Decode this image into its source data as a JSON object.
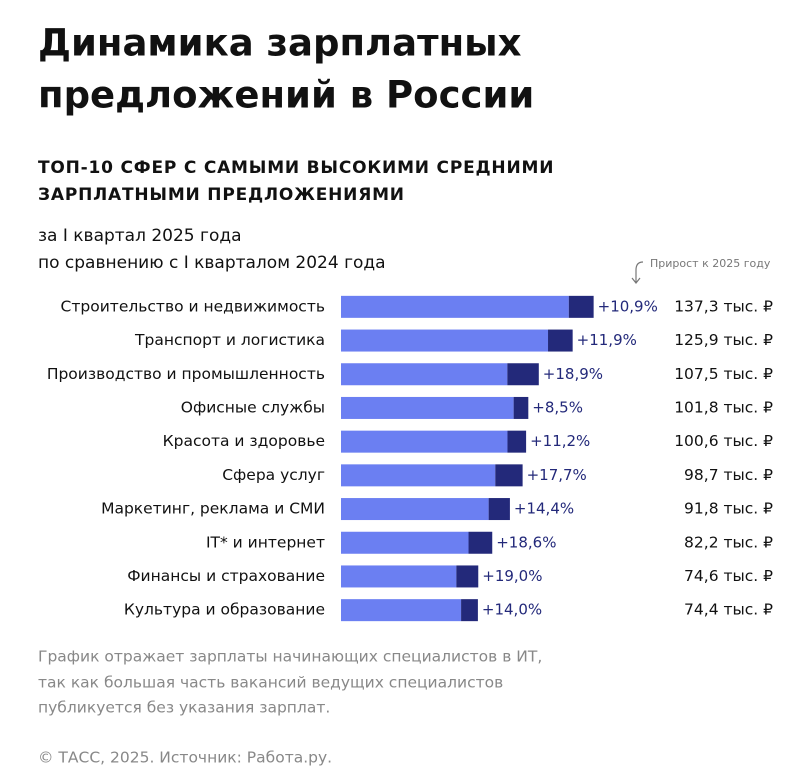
{
  "chart_data": {
    "type": "bar",
    "title": [
      "Динамика зарплатных",
      "предложений в России"
    ],
    "subtitle": [
      "ТОП-10 СФЕР С САМЫМИ ВЫСОКИМИ СРЕДНИМИ",
      "ЗАРПЛАТНЫМИ ПРЕДЛОЖЕНИЯМИ"
    ],
    "period": [
      "за I квартал 2025 года",
      "по сравнению с I кварталом 2024 года"
    ],
    "annotation": "Прирост к 2025 году",
    "categories": [
      "Строительство и недвижимость",
      "Транспорт и логистика",
      "Производство и промышленность",
      "Офисные службы",
      "Красота и здоровье",
      "Сфера услуг",
      "Маркетинг, реклама и СМИ",
      "IT* и интернет",
      "Финансы и страхование",
      "Культура и образование"
    ],
    "values": [
      137.3,
      125.9,
      107.5,
      101.8,
      100.6,
      98.7,
      91.8,
      82.2,
      74.6,
      74.4
    ],
    "value_labels": [
      "137,3 тыс. ₽",
      "125,9 тыс. ₽",
      "107,5 тыс. ₽",
      "101,8 тыс. ₽",
      "100,6 тыс. ₽",
      "98,7 тыс. ₽",
      "91,8 тыс. ₽",
      "82,2 тыс. ₽",
      "74,6 тыс. ₽",
      "74,4 тыс. ₽"
    ],
    "growth": [
      10.9,
      11.9,
      18.9,
      8.5,
      11.2,
      17.7,
      14.4,
      18.6,
      19.0,
      14.0
    ],
    "growth_labels": [
      "+10,9%",
      "+11,9%",
      "+18,9%",
      "+8,5%",
      "+11,2%",
      "+17,7%",
      "+14,4%",
      "+18,6%",
      "+19,0%",
      "+14,0%"
    ],
    "color": "#6b7ff2",
    "growth_color": "#23297a",
    "xlim": [
      0,
      150
    ],
    "note": [
      "График отражает зарплаты начинающих специалистов в ИТ,",
      "так как большая часть вакансий ведущих специалистов",
      "публикуется без указания зарплат."
    ],
    "source": "© ТАСС, 2025. Источник: Работа.ру."
  }
}
